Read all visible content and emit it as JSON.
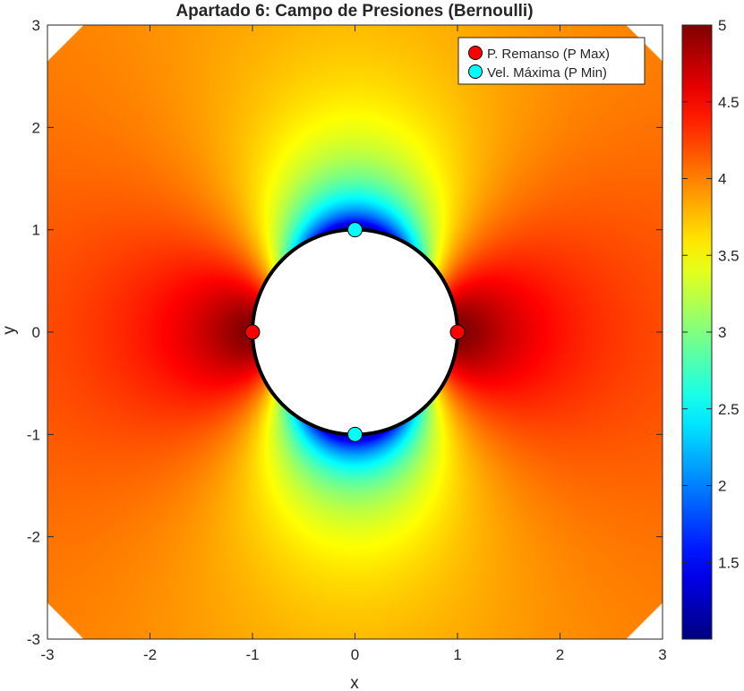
{
  "chart_data": {
    "type": "heatmap",
    "title": "Apartado 6: Campo de Presiones (Bernoulli)",
    "xlabel": "x",
    "ylabel": "y",
    "xlim": [
      -3,
      3
    ],
    "ylim": [
      -3,
      3
    ],
    "x_ticks": [
      -3,
      -2,
      -1,
      0,
      1,
      2,
      3
    ],
    "y_ticks": [
      -3,
      -2,
      -1,
      0,
      1,
      2,
      3
    ],
    "colormap": "jet",
    "color_range": [
      1,
      5
    ],
    "colorbar_ticks": [
      1.5,
      2,
      2.5,
      3,
      3.5,
      4,
      4.5,
      5
    ],
    "obstacle": {
      "type": "circle",
      "center": [
        0,
        0
      ],
      "radius": 1,
      "edge_color": "#000000",
      "fill": "#ffffff"
    },
    "series": [
      {
        "name": "P. Remanso (P Max)",
        "color": "#ff0000",
        "points": [
          [
            -1,
            0
          ],
          [
            1,
            0
          ]
        ]
      },
      {
        "name": "Vel. Máxima (P Min)",
        "color": "#00ffff",
        "points": [
          [
            0,
            1
          ],
          [
            0,
            -1
          ]
        ]
      }
    ],
    "legend_position": "top-right",
    "grid": false
  }
}
